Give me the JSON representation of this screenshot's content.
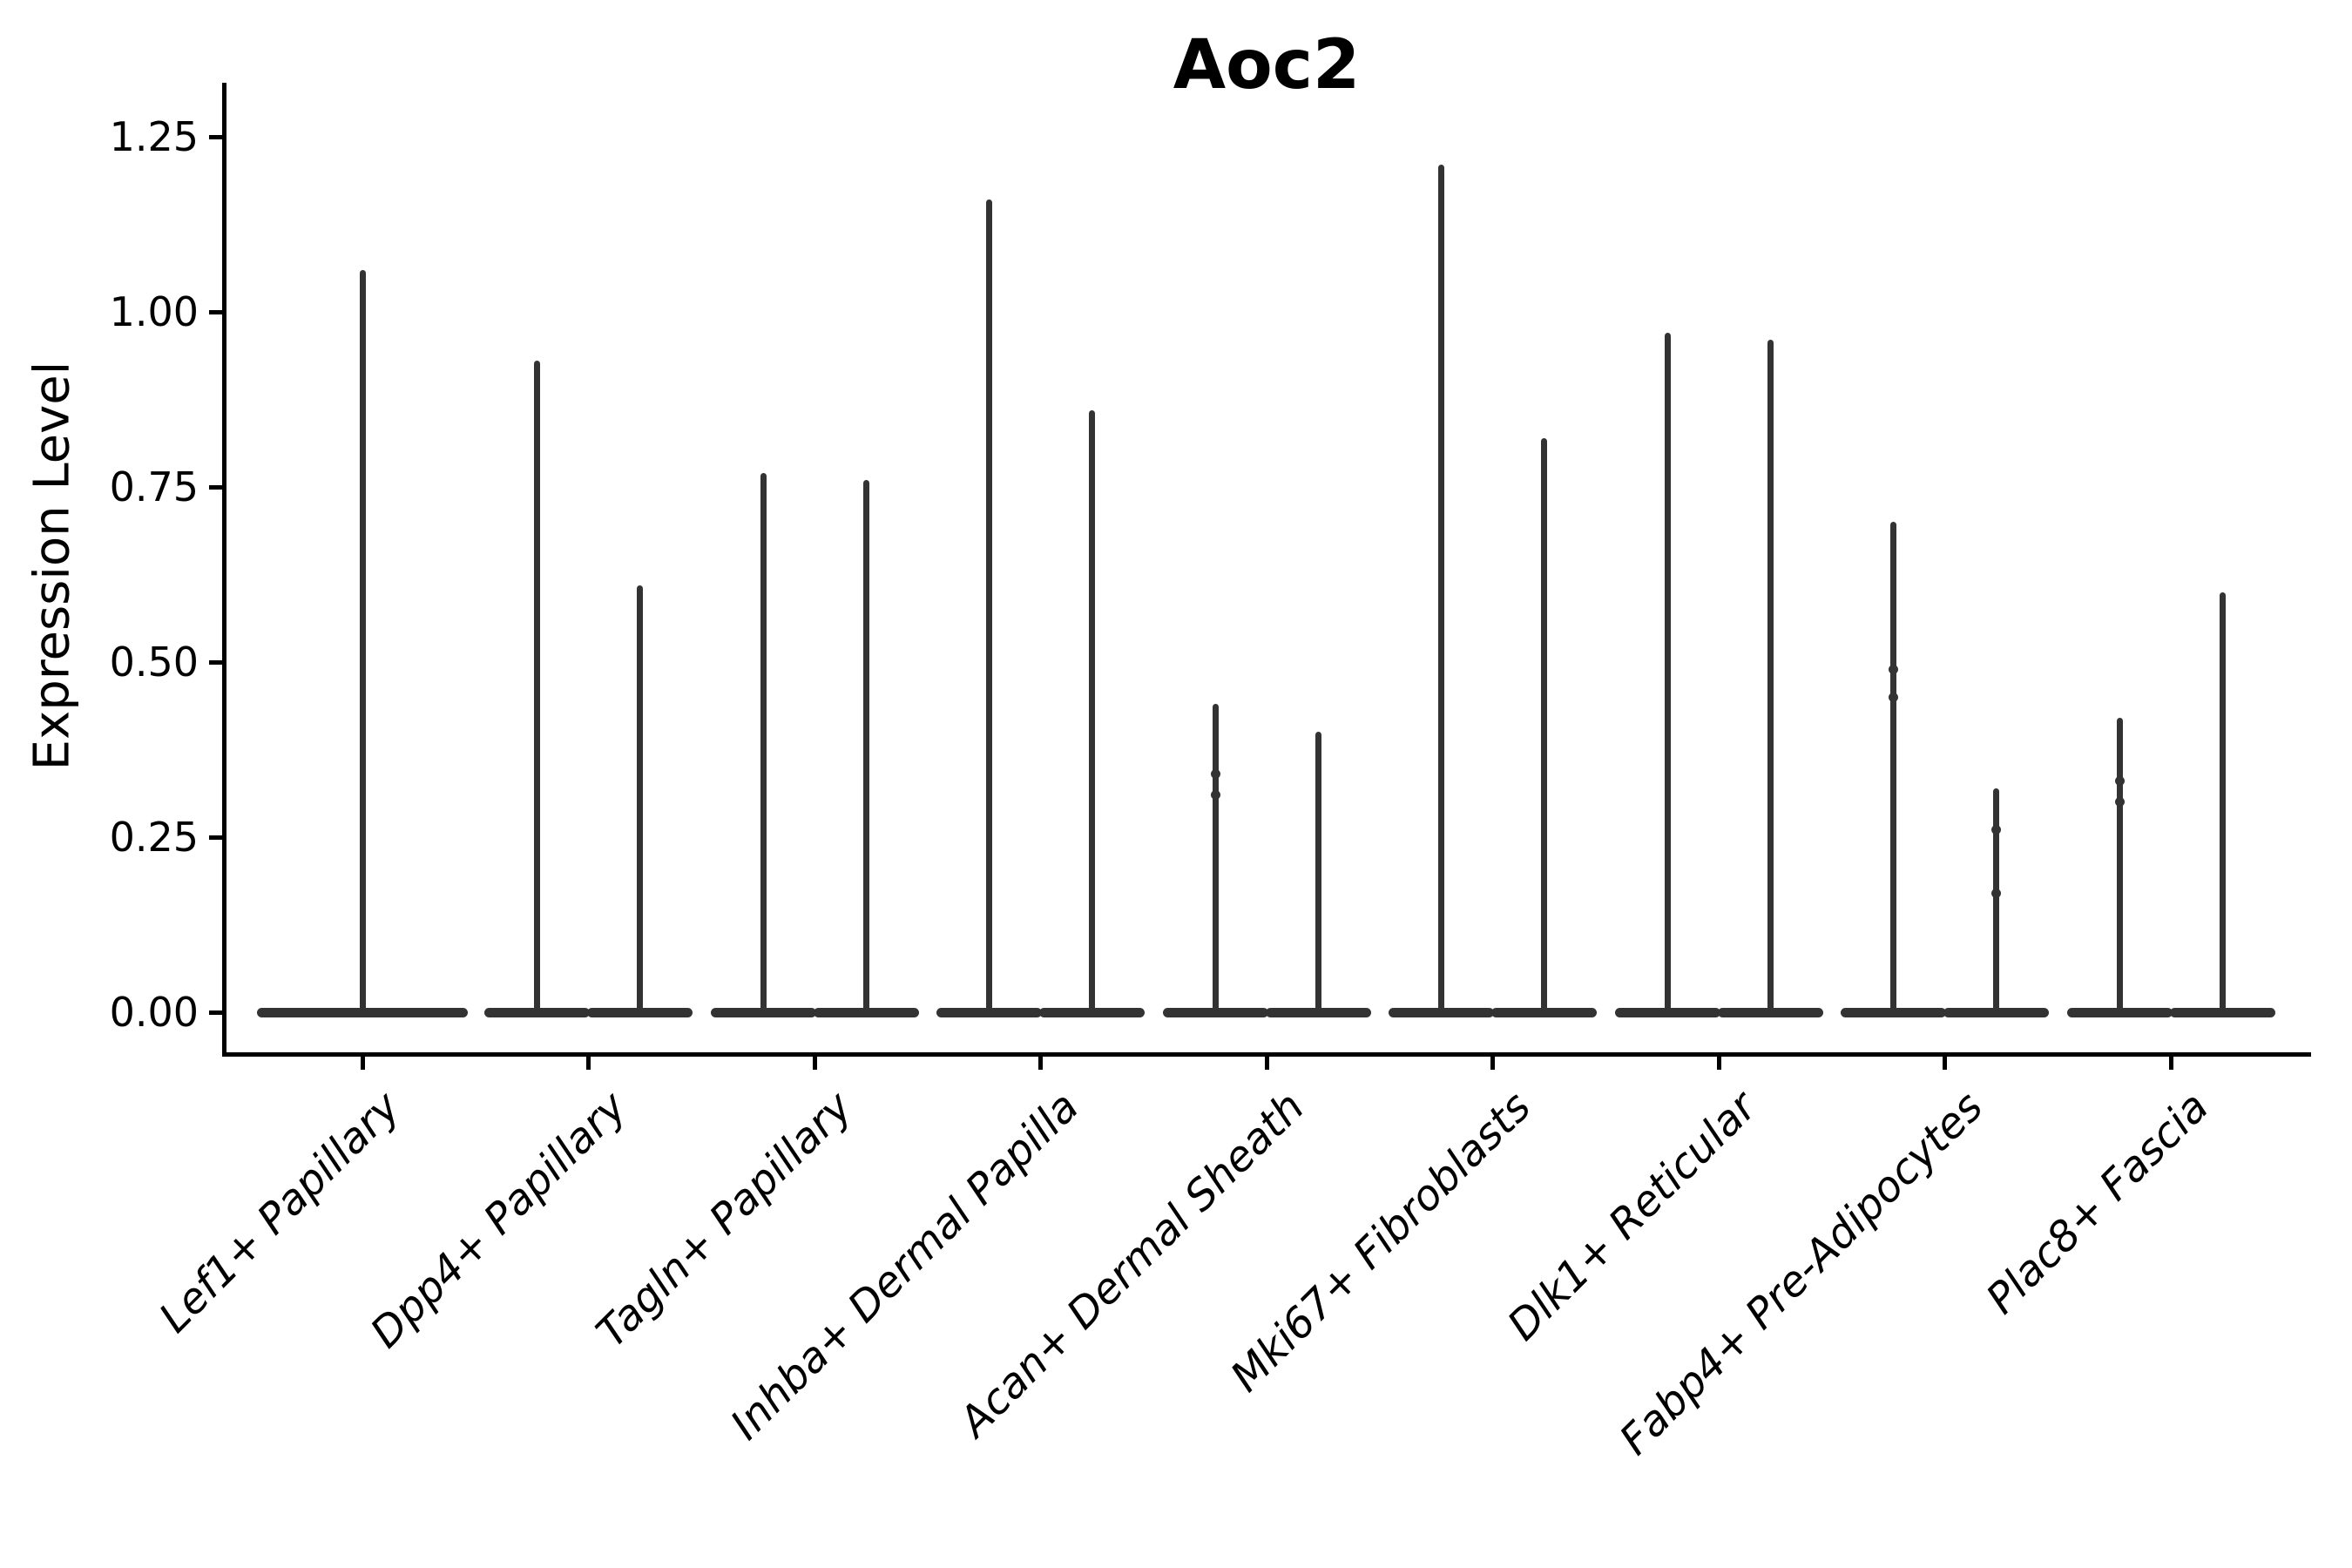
{
  "chart_data": {
    "type": "violin",
    "title": "Aoc2",
    "xlabel": "",
    "ylabel": "Expression Level",
    "ylim": [
      -0.06,
      1.32
    ],
    "yticks": [
      "0.00",
      "0.25",
      "0.50",
      "0.75",
      "1.00",
      "1.25"
    ],
    "grid": false,
    "legend": null,
    "violin_color": "#333333",
    "axis_color": "#000000",
    "background_color": "#ffffff",
    "categories": [
      {
        "label": "Lef1+ Papillary",
        "violins": [
          {
            "max": 1.06,
            "knots": []
          }
        ]
      },
      {
        "label": "Dpp4+ Papillary",
        "violins": [
          {
            "max": 0.93,
            "knots": []
          },
          {
            "max": 0.61,
            "knots": []
          }
        ]
      },
      {
        "label": "Tagln+ Papillary",
        "violins": [
          {
            "max": 0.77,
            "knots": []
          },
          {
            "max": 0.76,
            "knots": []
          }
        ]
      },
      {
        "label": "Inhba+ Dermal Papilla",
        "violins": [
          {
            "max": 1.16,
            "knots": []
          },
          {
            "max": 0.86,
            "knots": []
          }
        ]
      },
      {
        "label": "Acan+ Dermal Sheath",
        "violins": [
          {
            "max": 0.44,
            "knots": [
              0.34,
              0.31
            ]
          },
          {
            "max": 0.4,
            "knots": []
          }
        ]
      },
      {
        "label": "Mki67+ Fibroblasts",
        "violins": [
          {
            "max": 1.21,
            "knots": []
          },
          {
            "max": 0.82,
            "knots": []
          }
        ]
      },
      {
        "label": "Dlk1+ Reticular",
        "violins": [
          {
            "max": 0.97,
            "knots": []
          },
          {
            "max": 0.96,
            "knots": []
          }
        ]
      },
      {
        "label": "Fabp4+ Pre-Adipocytes",
        "violins": [
          {
            "max": 0.7,
            "knots": [
              0.49,
              0.45
            ]
          },
          {
            "max": 0.32,
            "knots": [
              0.26,
              0.17
            ]
          }
        ]
      },
      {
        "label": "Plac8+ Fascia",
        "violins": [
          {
            "max": 0.42,
            "knots": [
              0.33,
              0.3
            ]
          },
          {
            "max": 0.6,
            "knots": []
          }
        ]
      }
    ]
  }
}
